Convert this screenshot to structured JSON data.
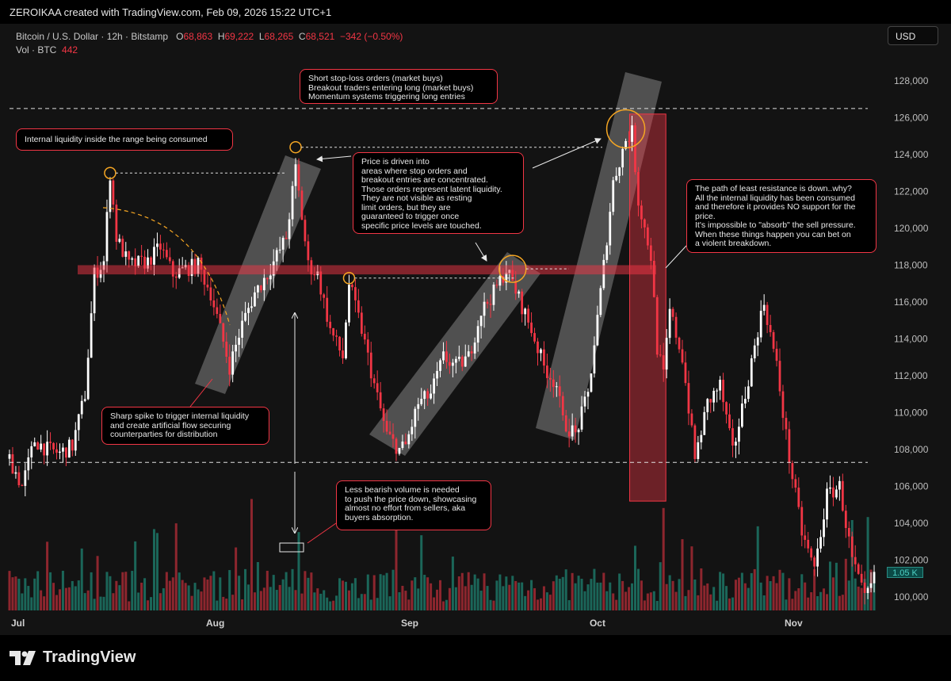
{
  "topbar": {
    "text": "ZEROIKAA created with TradingView.com, Feb 09, 2026 15:22 UTC+1"
  },
  "header": {
    "symbol": "Bitcoin / U.S. Dollar · 12h · Bitstamp",
    "o_label": "O",
    "o_value": "68,863",
    "h_label": "H",
    "h_value": "69,222",
    "l_label": "L",
    "l_value": "68,265",
    "c_label": "C",
    "c_value": "68,521",
    "change": "−342 (−0.50%)",
    "vol_label": "Vol · BTC",
    "vol_value": "442"
  },
  "currency_button": "USD",
  "volume_badge": "1.05 K",
  "logo_text": "TradingView",
  "annotations": {
    "stop_loss": "Short stop-loss orders (market buys)\nBreakout traders entering long (market buys)\nMomentum systems triggering long entries",
    "internal_liquidity": "Internal liquidity inside the range being consumed",
    "price_driven": "Price is driven into\nareas where stop orders and\nbreakout entries are concentrated.\nThose orders represent latent liquidity.\nThey are not visible as resting\nlimit orders, but they are\nguaranteed to trigger once\nspecific price levels are touched.",
    "path_least": "The path of least resistance is down..why?\nAll the internal liquidity has been consumed\nand therefore it provides NO support for the\nprice.\nIt's impossible to \"absorb\" the sell pressure.\nWhen these things happen you can bet on\na violent breakdown.",
    "sharp_spike": "Sharp spike to trigger internal liquidity\nand create artificial flow securing\ncounterparties for distribution",
    "less_bearish": "Less bearish volume is needed\nto push the price down, showcasing\nalmost no effort from sellers, aka\nbuyers absorption."
  },
  "colors": {
    "up": "#ffffff",
    "down": "#f23645",
    "vol_up": "#22ab94",
    "vol_down": "#f23645",
    "zone": "#f23645",
    "channel": "#cfcfcf",
    "highlight": "#f5a623"
  },
  "chart_data": {
    "type": "candlestick",
    "title": "Bitcoin / U.S. Dollar · 12h · Bitstamp",
    "ylabel": "USD",
    "ylim": [
      99000,
      129500
    ],
    "y_ticks": [
      100000,
      102000,
      104000,
      106000,
      108000,
      110000,
      112000,
      114000,
      116000,
      118000,
      120000,
      122000,
      124000,
      126000,
      128000
    ],
    "y_tick_labels": [
      "100,000",
      "102,000",
      "104,000",
      "106,000",
      "108,000",
      "110,000",
      "112,000",
      "114,000",
      "116,000",
      "118,000",
      "120,000",
      "122,000",
      "124,000",
      "126,000",
      "128,000"
    ],
    "x_labels": [
      {
        "label": "Jul",
        "index": 0
      },
      {
        "label": "Aug",
        "index": 62
      },
      {
        "label": "Sep",
        "index": 124
      },
      {
        "label": "Oct",
        "index": 184
      },
      {
        "label": "Nov",
        "index": 246
      }
    ],
    "n_bars": 276,
    "path_points": [
      [
        0,
        107500
      ],
      [
        4,
        106000
      ],
      [
        8,
        108500
      ],
      [
        12,
        108000
      ],
      [
        16,
        107800
      ],
      [
        20,
        108200
      ],
      [
        24,
        111000
      ],
      [
        27,
        117500
      ],
      [
        30,
        118200
      ],
      [
        32,
        123000
      ],
      [
        34,
        119500
      ],
      [
        38,
        118000
      ],
      [
        44,
        118200
      ],
      [
        48,
        119000
      ],
      [
        52,
        117500
      ],
      [
        56,
        117800
      ],
      [
        60,
        118000
      ],
      [
        64,
        116500
      ],
      [
        67,
        114500
      ],
      [
        70,
        112500
      ],
      [
        74,
        114800
      ],
      [
        78,
        116500
      ],
      [
        82,
        117500
      ],
      [
        88,
        119500
      ],
      [
        91,
        123200
      ],
      [
        95,
        118000
      ],
      [
        98,
        117500
      ],
      [
        102,
        114500
      ],
      [
        106,
        113000
      ],
      [
        108,
        117000
      ],
      [
        112,
        114500
      ],
      [
        116,
        111500
      ],
      [
        120,
        108800
      ],
      [
        124,
        108000
      ],
      [
        126,
        108200
      ],
      [
        130,
        110500
      ],
      [
        134,
        111000
      ],
      [
        138,
        113000
      ],
      [
        142,
        112500
      ],
      [
        146,
        113000
      ],
      [
        150,
        115500
      ],
      [
        154,
        116500
      ],
      [
        158,
        117800
      ],
      [
        162,
        116200
      ],
      [
        166,
        114500
      ],
      [
        170,
        112500
      ],
      [
        174,
        111500
      ],
      [
        176,
        109500
      ],
      [
        180,
        108800
      ],
      [
        184,
        111000
      ],
      [
        188,
        116500
      ],
      [
        192,
        122500
      ],
      [
        196,
        124800
      ],
      [
        198,
        125200
      ],
      [
        200,
        121500
      ],
      [
        204,
        118500
      ],
      [
        206,
        113500
      ],
      [
        208,
        112000
      ],
      [
        210,
        115500
      ],
      [
        214,
        113000
      ],
      [
        218,
        107500
      ],
      [
        222,
        110500
      ],
      [
        226,
        111500
      ],
      [
        230,
        107800
      ],
      [
        234,
        111000
      ],
      [
        238,
        114500
      ],
      [
        240,
        116000
      ],
      [
        244,
        112500
      ],
      [
        248,
        107500
      ],
      [
        252,
        103500
      ],
      [
        256,
        101500
      ],
      [
        260,
        105500
      ],
      [
        264,
        106000
      ],
      [
        268,
        102000
      ],
      [
        272,
        99800
      ],
      [
        275,
        101000
      ]
    ],
    "horizontal_levels": [
      {
        "price": 126500,
        "style": "dashed"
      },
      {
        "price": 107300,
        "style": "dashed"
      }
    ],
    "marked_highs": [
      {
        "index": 32,
        "price": 123000
      },
      {
        "index": 91,
        "price": 124400
      },
      {
        "index": 108,
        "price": 117300
      },
      {
        "index": 160,
        "price": 117800
      },
      {
        "index": 196,
        "price": 125400
      }
    ],
    "resistance_zone": {
      "price_low": 117500,
      "price_high": 118000
    },
    "breakdown_box": {
      "start_index": 198,
      "end_index": 208,
      "price_low": 105200,
      "price_high": 126200
    },
    "volume_ylim": [
      0,
      5000
    ],
    "current_volume": "1.05 K"
  }
}
